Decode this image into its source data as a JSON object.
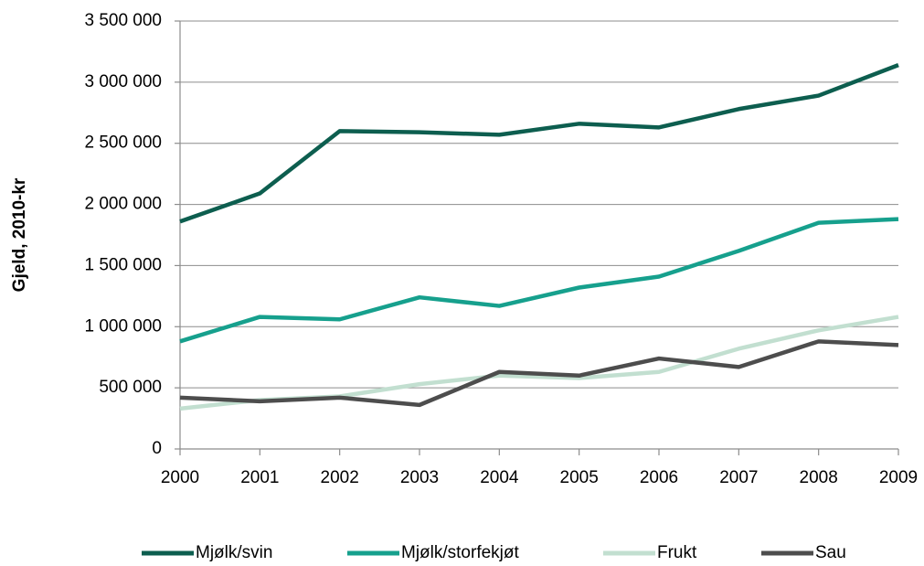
{
  "chart_data": {
    "type": "line",
    "y_label": "Gjeld, 2010-kr",
    "x": [
      2000,
      2001,
      2002,
      2003,
      2004,
      2005,
      2006,
      2007,
      2008,
      2009
    ],
    "xlim": [
      2000,
      2009
    ],
    "xticks": [
      2000,
      2001,
      2002,
      2003,
      2004,
      2005,
      2006,
      2007,
      2008,
      2009
    ],
    "ylim": [
      0,
      3500000
    ],
    "yticks": [
      0,
      {
        "value": 500000,
        "label": "500 000"
      },
      {
        "value": 1000000,
        "label": "1 000 000"
      },
      {
        "value": 1500000,
        "label": "1 500 000"
      },
      {
        "value": 2000000,
        "label": "2 000 000"
      },
      {
        "value": 2500000,
        "label": "2 500 000"
      },
      {
        "value": 3000000,
        "label": "3 000 000"
      },
      {
        "value": 3500000,
        "label": "3 500 000"
      }
    ],
    "grid": true,
    "legend": "bottom",
    "series": [
      {
        "name": "Mjølk/svin",
        "color": "#0d5e4f",
        "values": [
          1860000,
          2090000,
          2600000,
          2590000,
          2570000,
          2660000,
          2630000,
          2780000,
          2890000,
          3140000
        ]
      },
      {
        "name": "Mjølk/storfekjøt",
        "color": "#16a08d",
        "values": [
          880000,
          1080000,
          1060000,
          1240000,
          1170000,
          1320000,
          1410000,
          1620000,
          1850000,
          1880000
        ]
      },
      {
        "name": "Frukt",
        "color": "#c2dfd0",
        "values": [
          330000,
          400000,
          430000,
          530000,
          600000,
          580000,
          630000,
          820000,
          970000,
          1080000
        ]
      },
      {
        "name": "Sau",
        "color": "#4d4d4d",
        "values": [
          420000,
          390000,
          420000,
          360000,
          630000,
          600000,
          740000,
          670000,
          880000,
          850000
        ]
      }
    ]
  }
}
